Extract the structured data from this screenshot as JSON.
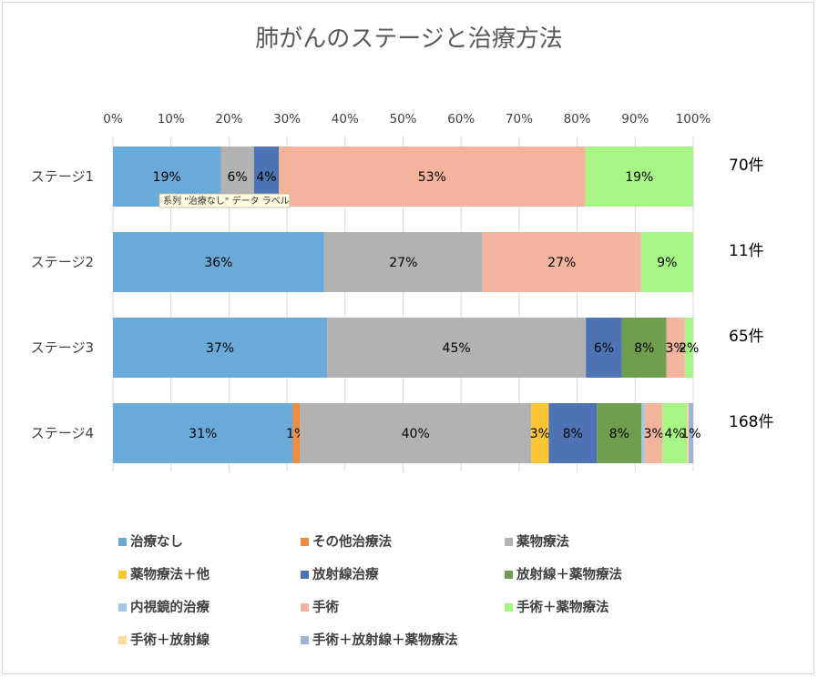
{
  "chart_data": {
    "type": "bar",
    "orientation": "horizontal",
    "stacked": "percent",
    "title": "肺がんのステージと治療方法",
    "x_ticks": [
      "0%",
      "10%",
      "20%",
      "30%",
      "40%",
      "50%",
      "60%",
      "70%",
      "80%",
      "90%",
      "100%"
    ],
    "xlim": [
      0,
      100
    ],
    "grid": true,
    "legend_position": "bottom",
    "categories": [
      "ステージ1",
      "ステージ2",
      "ステージ3",
      "ステージ4"
    ],
    "counts": [
      "70件",
      "11件",
      "65件",
      "168件"
    ],
    "series": [
      {
        "name": "治療なし",
        "color": "#6aaad9",
        "values": [
          18.6,
          36.4,
          36.9,
          31.0
        ],
        "labels": [
          "19%",
          "36%",
          "37%",
          "31%"
        ]
      },
      {
        "name": "その他治療法",
        "color": "#ef8c3f",
        "values": [
          0,
          0,
          0,
          1.2
        ],
        "labels": [
          "",
          "",
          "",
          "1%"
        ]
      },
      {
        "name": "薬物療法",
        "color": "#b2b2b2",
        "values": [
          5.7,
          27.3,
          44.6,
          39.9
        ],
        "labels": [
          "6%",
          "27%",
          "45%",
          "40%"
        ]
      },
      {
        "name": "薬物療法＋他",
        "color": "#fbc431",
        "values": [
          0,
          0,
          0,
          3.0
        ],
        "labels": [
          "",
          "",
          "",
          "3%"
        ]
      },
      {
        "name": "放射線治療",
        "color": "#4c74b4",
        "values": [
          4.3,
          0,
          6.2,
          8.3
        ],
        "labels": [
          "4%",
          "",
          "6%",
          "8%"
        ]
      },
      {
        "name": "放射線＋薬物療法",
        "color": "#6e9e4e",
        "values": [
          0,
          0,
          7.7,
          7.7
        ],
        "labels": [
          "",
          "",
          "8%",
          "8%"
        ]
      },
      {
        "name": "内視鏡的治療",
        "color": "#a6c8e6",
        "values": [
          0,
          0,
          0,
          0.6
        ],
        "labels": [
          "",
          "",
          "",
          ""
        ]
      },
      {
        "name": "手術",
        "color": "#f2b49c",
        "values": [
          52.8,
          27.3,
          3.1,
          3.0
        ],
        "labels": [
          "53%",
          "27%",
          "3%",
          "3%"
        ]
      },
      {
        "name": "手術＋薬物療法",
        "color": "#a7f584",
        "values": [
          18.6,
          9.0,
          1.5,
          4.2
        ],
        "labels": [
          "19%",
          "9%",
          "2%",
          "4%"
        ]
      },
      {
        "name": "手術＋放射線",
        "color": "#fdd9a0",
        "values": [
          0,
          0,
          0,
          0.3
        ],
        "labels": [
          "",
          "",
          "",
          ""
        ]
      },
      {
        "name": "手術＋放射線＋薬物療法",
        "color": "#9fb3d6",
        "values": [
          0,
          0,
          0,
          0.8
        ],
        "labels": [
          "",
          "",
          "",
          "1%"
        ]
      }
    ],
    "tooltip": "系列 \"治療なし\" データ ラベル"
  }
}
